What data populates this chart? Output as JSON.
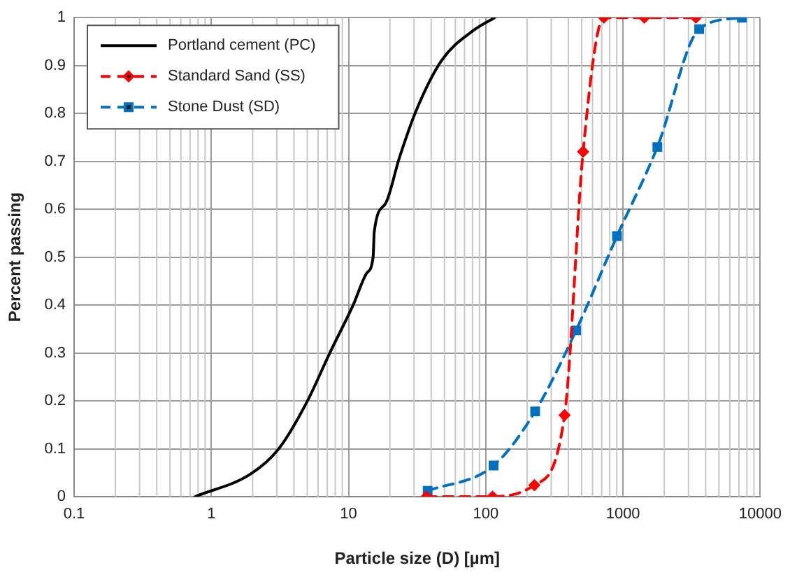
{
  "chart_data": {
    "type": "line",
    "xlabel": "Particle size (D) [µm]",
    "ylabel": "Percent passing",
    "log": "x",
    "xlim": [
      0.1,
      10000
    ],
    "xticks": [
      0.1,
      1,
      10,
      100,
      1000,
      10000
    ],
    "ylim": [
      0,
      1
    ],
    "yticks": [
      0,
      0.1,
      0.2,
      0.3,
      0.4,
      0.5,
      0.6,
      0.7,
      0.8,
      0.9,
      1
    ],
    "grid": true,
    "legend": "top left",
    "series": [
      {
        "name": "Portland cement (PC)",
        "color": "#000000",
        "marker": "none",
        "line_style": "solid",
        "x": [
          0.76,
          1.95,
          3.1,
          4.96,
          7.3,
          10.8,
          13.6,
          15.1,
          15.4,
          18.6,
          23.5,
          30.9,
          47.5,
          81,
          116
        ],
        "values": [
          0,
          0.048,
          0.1,
          0.197,
          0.3,
          0.4,
          0.467,
          0.5,
          0.554,
          0.612,
          0.708,
          0.804,
          0.91,
          0.973,
          1
        ]
      },
      {
        "name": "Standard Sand (SS)",
        "color": "#ff0000",
        "marker": "diamond",
        "line_style": "dashed",
        "x": [
          37,
          112,
          226,
          375,
          512,
          726,
          1430,
          3400
        ],
        "values": [
          0,
          0,
          0.024,
          0.17,
          0.72,
          1,
          1,
          1
        ]
      },
      {
        "name": "Stone Dust (SD)",
        "color": "#0070c0",
        "marker": "square",
        "line_style": "dashed",
        "x": [
          37.7,
          114,
          229,
          455,
          904,
          1780,
          3590,
          7350
        ],
        "values": [
          0.012,
          0.065,
          0.178,
          0.347,
          0.544,
          0.73,
          0.976,
          1
        ]
      }
    ]
  }
}
